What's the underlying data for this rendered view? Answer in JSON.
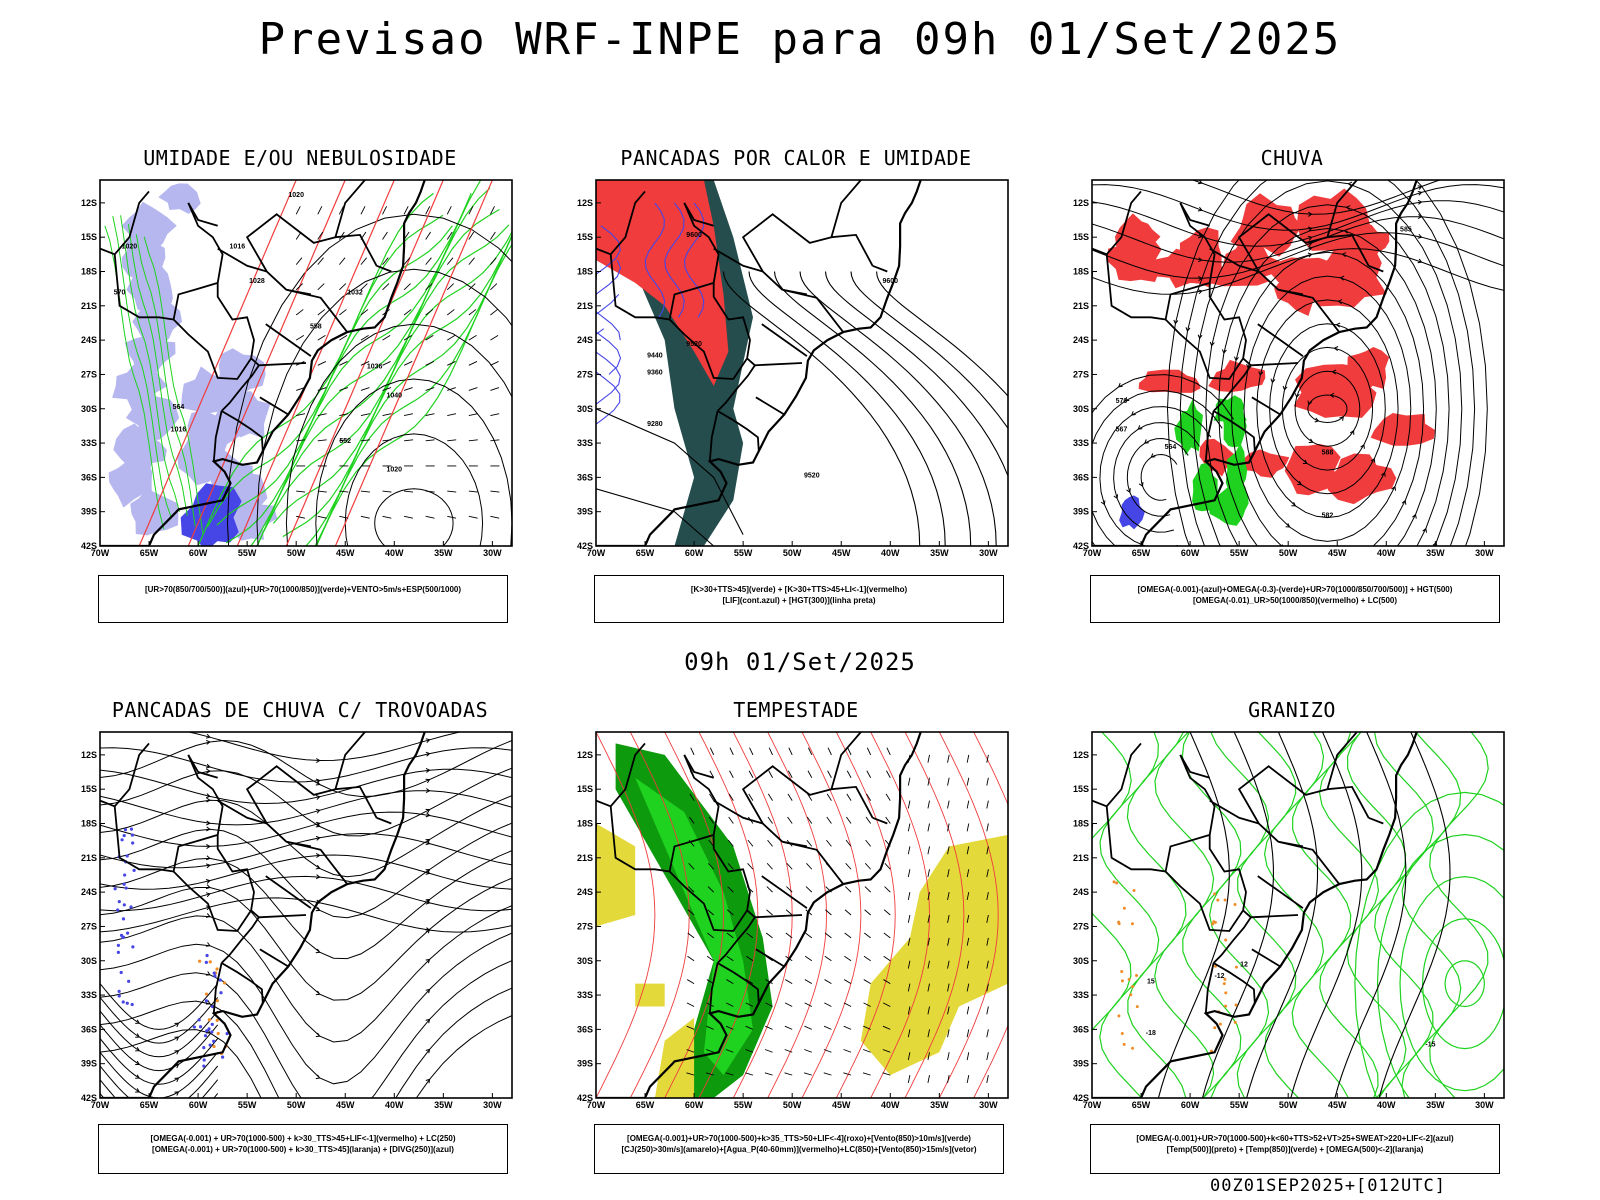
{
  "title": "Previsao WRF-INPE  para 09h 01/Set/2025",
  "mid_title": "09h 01/Set/2025",
  "footer": "00Z01SEP2025+[012UTC]",
  "axes": {
    "lat_labels": [
      "12S",
      "15S",
      "18S",
      "21S",
      "24S",
      "27S",
      "30S",
      "33S",
      "36S",
      "39S",
      "42S"
    ],
    "lon_labels": [
      "70W",
      "65W",
      "60W",
      "55W",
      "50W",
      "45W",
      "40W",
      "35W",
      "30W"
    ],
    "lat_range": [
      -42,
      -10
    ],
    "lon_range": [
      -70,
      -28
    ]
  },
  "colors": {
    "blue_shade": "#b7b7f0",
    "blue_dark": "#4646e6",
    "green": "#1fd21f",
    "red": "#f03c3c",
    "dark_teal": "#254d4d",
    "yellow": "#e4d93a",
    "orange": "#f08c28",
    "dark_green": "#0d9a0d"
  },
  "panels": [
    {
      "id": "umidade",
      "title": "UMIDADE E/OU NEBULOSIDADE",
      "legend": [
        "[UR>70(850/700/500)](azul)+[UR>70(1000/850)](verde)+VENTO>5m/s+ESP(500/1000)"
      ],
      "contour_labels": [
        "1020",
        "1016",
        "1020",
        "1028",
        "1032",
        "1036",
        "1040",
        "1020",
        "1016",
        "570",
        "564",
        "558",
        "552"
      ]
    },
    {
      "id": "pancadas_calor",
      "title": "PANCADAS POR CALOR E UMIDADE",
      "legend": [
        "[K>30+TTS>45](verde) + [K>30+TTS>45+LI<-1](vermelho)",
        "[LIF](cont.azul) + [HGT(300)](linha preta)"
      ],
      "contour_labels": [
        "9600",
        "9520",
        "9440",
        "9360",
        "9280",
        "9520",
        "9600"
      ]
    },
    {
      "id": "chuva",
      "title": "CHUVA",
      "legend": [
        "[OMEGA(-0.001)-(azul)+OMEGA(-0.3)-(verde)+UR>70(1000/850/700/500)] + HGT(500)",
        "[OMEGA(-0.01)_UR>50(1000/850)(vermelho) + LC(500)"
      ],
      "contour_labels": [
        "585",
        "570",
        "567",
        "564",
        "582",
        "588"
      ]
    },
    {
      "id": "pancadas_trovoadas",
      "title": "PANCADAS DE CHUVA C/ TROVOADAS",
      "legend": [
        "[OMEGA(-0.001) + UR>70(1000-500) + k>30_TTS>45+LIF<-1](vermelho) + LC(250)",
        "[OMEGA(-0.001) + UR>70(1000-500) + k>30_TTS>45](laranja) + [DIVG(250)](azul)"
      ],
      "contour_labels": []
    },
    {
      "id": "tempestade",
      "title": "TEMPESTADE",
      "legend": [
        "[OMEGA(-0.001)+UR>70(1000-500)+k>35_TTS>50+LIF<-4](roxo)+[Vento(850)>10m/s](verde)",
        "[CJ(250)>30m/s](amarelo)+[Agua_P(40-60mm)](vermelho)+LC(850)+[Vento(850)>15m/s](vetor)"
      ],
      "contour_labels": []
    },
    {
      "id": "granizo",
      "title": "GRANIZO",
      "legend": [
        "[OMEGA(-0.001)+UR>70(1000-500)+k<60+TTS>52+VT>25+SWEAT>220+LIF<-2](azul)",
        "[Temp(500)](preto) + [Temp(850)](verde) + [OMEGA(500)<-2](laranja)"
      ],
      "contour_labels": [
        "12",
        "-12",
        "15",
        "-15",
        "-18"
      ]
    }
  ]
}
